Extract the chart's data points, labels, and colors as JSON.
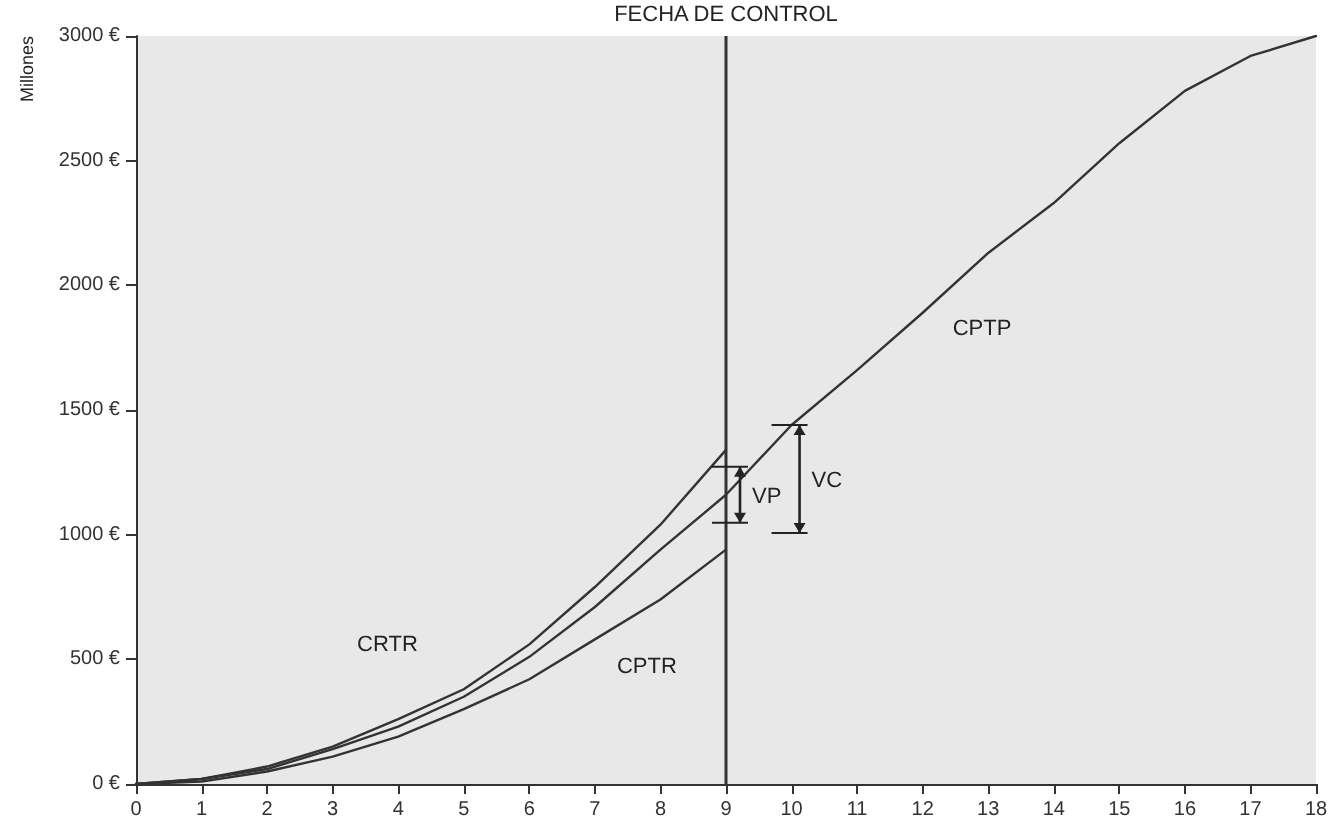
{
  "chart_data": {
    "type": "line",
    "ylabel": "Millones",
    "xlim": [
      0,
      18
    ],
    "xticks": [
      0,
      1,
      2,
      3,
      4,
      5,
      6,
      7,
      8,
      9,
      10,
      11,
      12,
      13,
      14,
      15,
      16,
      17,
      18
    ],
    "ylim": [
      0,
      3000
    ],
    "yticks": [
      {
        "value": 0,
        "label": "0 €"
      },
      {
        "value": 500,
        "label": "500 €"
      },
      {
        "value": 1000,
        "label": "1000 €"
      },
      {
        "value": 1500,
        "label": "1500 €"
      },
      {
        "value": 2000,
        "label": "2000 €"
      },
      {
        "value": 2500,
        "label": "2500 €"
      },
      {
        "value": 3000,
        "label": "3000 €"
      }
    ],
    "series": [
      {
        "name": "CRTR",
        "color": "#333333",
        "x": [
          0,
          1,
          2,
          3,
          4,
          5,
          6,
          7,
          8,
          9
        ],
        "values": [
          0,
          20,
          70,
          150,
          260,
          380,
          560,
          790,
          1040,
          1340
        ]
      },
      {
        "name": "CPTP",
        "color": "#333333",
        "x": [
          0,
          1,
          2,
          3,
          4,
          5,
          6,
          7,
          8,
          9,
          10,
          11,
          12,
          13,
          14,
          15,
          16,
          17,
          18
        ],
        "values": [
          0,
          20,
          60,
          140,
          230,
          350,
          510,
          710,
          940,
          1160,
          1440,
          1660,
          1890,
          2130,
          2330,
          2570,
          2780,
          2920,
          3000
        ]
      },
      {
        "name": "CPTR",
        "color": "#333333",
        "x": [
          0,
          1,
          2,
          3,
          4,
          5,
          6,
          7,
          8,
          9
        ],
        "values": [
          0,
          10,
          50,
          110,
          190,
          300,
          420,
          580,
          740,
          940
        ]
      }
    ],
    "ref_lines": [
      {
        "axis": "x",
        "value": 9,
        "label": "FECHA DE CONTROL",
        "color": "#333333"
      }
    ],
    "annotations": [
      {
        "text": "VP",
        "x": 9,
        "y": 1160
      },
      {
        "text": "VC",
        "x": 10,
        "y": 1440
      }
    ],
    "grid": false,
    "legend": false,
    "marker": "none",
    "line_style": "solid"
  }
}
